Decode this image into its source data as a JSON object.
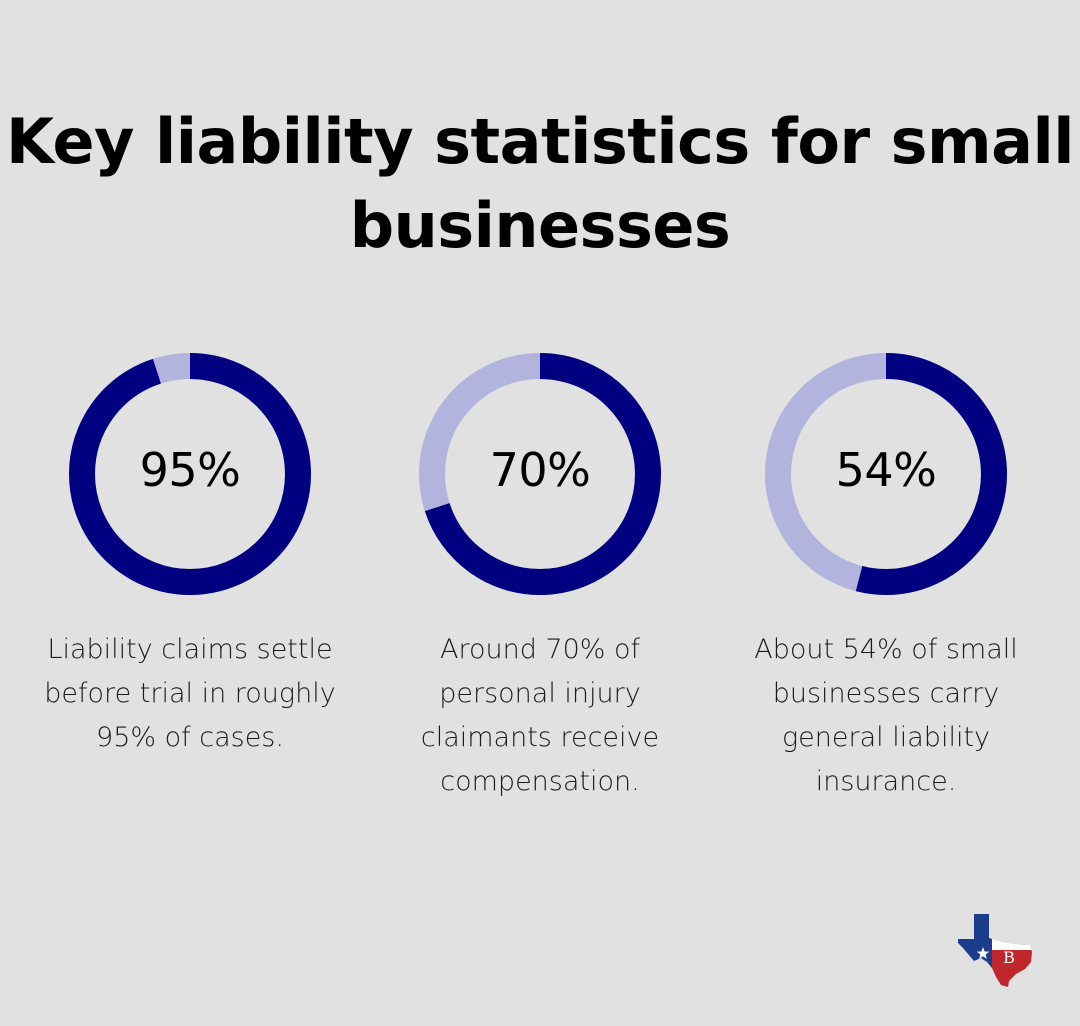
{
  "title": "Key liability statistics for small businesses",
  "colors": {
    "background": "#e0e1e0",
    "filled": "#000080",
    "remaining": "#b3b4dd"
  },
  "chart_data": [
    {
      "type": "pie",
      "variant": "donut",
      "value": 95,
      "max": 100,
      "label": "95%",
      "description": "Liability claims settle before trial in roughly 95% of cases."
    },
    {
      "type": "pie",
      "variant": "donut",
      "value": 70,
      "max": 100,
      "label": "70%",
      "description": "Around 70% of personal injury claimants receive compensation."
    },
    {
      "type": "pie",
      "variant": "donut",
      "value": 54,
      "max": 100,
      "label": "54%",
      "description": "About 54% of small businesses carry general liability insurance."
    }
  ],
  "logo": {
    "icon": "texas-flag-map-icon",
    "monogram": "B"
  }
}
